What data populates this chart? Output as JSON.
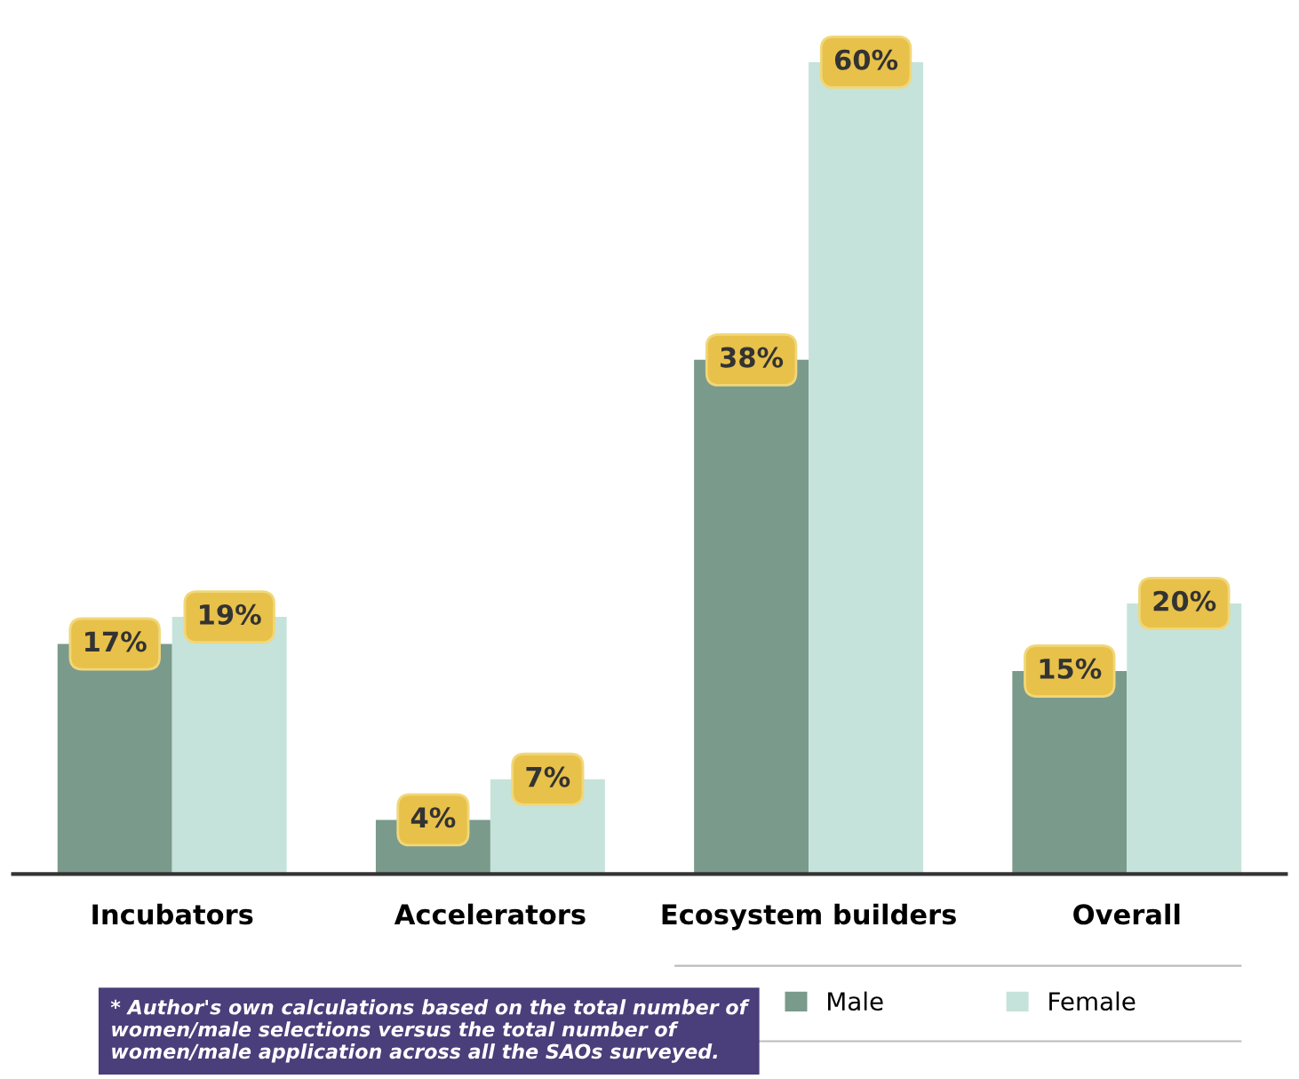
{
  "chart_data": {
    "type": "bar",
    "categories": [
      "Incubators",
      "Accelerators",
      "Ecosystem builders",
      "Overall"
    ],
    "series": [
      {
        "name": "Male",
        "color": "#7a9a8c",
        "values": [
          17,
          4,
          38,
          15
        ],
        "value_labels": [
          "17%",
          "4%",
          "38%",
          "15%"
        ]
      },
      {
        "name": "Female",
        "color": "#c5e3da",
        "values": [
          19,
          7,
          60,
          20
        ],
        "value_labels": [
          "19%",
          "7%",
          "60%",
          "20%"
        ]
      }
    ],
    "legend": "bottom",
    "grid": false,
    "annotations": [
      "* Author's own calculations based on the total number of women/male selections versus the total number of women/male application across all the SAOs surveyed."
    ]
  }
}
